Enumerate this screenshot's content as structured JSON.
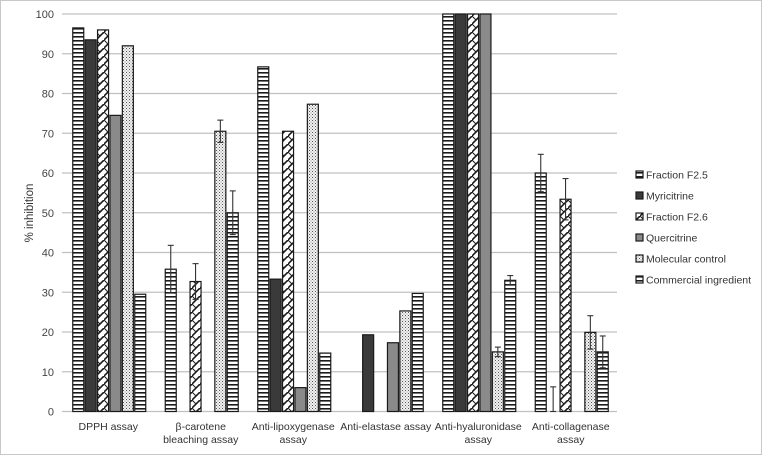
{
  "chart_data": {
    "type": "bar",
    "title": "",
    "xlabel": "",
    "ylabel": "% inhibition",
    "ylim": [
      0,
      100
    ],
    "yticks": [
      0,
      10,
      20,
      30,
      40,
      50,
      60,
      70,
      80,
      90,
      100
    ],
    "grid": true,
    "legend_position": "right",
    "categories": [
      [
        "DPPH assay"
      ],
      [
        "β-carotene",
        "bleaching assay"
      ],
      [
        "Anti-lipoxygenase",
        "assay"
      ],
      [
        "Anti-elastase assay"
      ],
      [
        "Anti-hyaluronidase",
        "assay"
      ],
      [
        "Anti-collagenase",
        "assay"
      ]
    ],
    "series": [
      {
        "name": "Fraction F2.5",
        "pattern": "hlines",
        "values": [
          96.5,
          35.8,
          86.7,
          0,
          100,
          60
        ],
        "errors": [
          0,
          6,
          0,
          0,
          0,
          4.7
        ]
      },
      {
        "name": "Myricitrine",
        "pattern": "dark",
        "values": [
          93.5,
          0,
          33.3,
          19.3,
          100,
          0
        ],
        "errors": [
          0,
          0,
          0,
          0,
          0,
          6.2
        ]
      },
      {
        "name": "Fraction F2.6",
        "pattern": "zigzag",
        "values": [
          96,
          32.7,
          70.5,
          0,
          100,
          53.4
        ],
        "errors": [
          0,
          4.5,
          0,
          0,
          0,
          5.2
        ]
      },
      {
        "name": "Quercitrine",
        "pattern": "gray",
        "values": [
          74.5,
          0,
          6,
          17.3,
          100,
          0
        ],
        "errors": [
          0,
          0,
          0,
          0,
          0,
          0
        ]
      },
      {
        "name": "Molecular control",
        "pattern": "dots",
        "values": [
          92,
          70.5,
          77.3,
          25.3,
          15,
          19.9
        ],
        "errors": [
          0,
          2.8,
          0,
          0,
          1.2,
          4.2
        ]
      },
      {
        "name": "Commercial ingredient",
        "pattern": "hlines",
        "values": [
          29.5,
          50,
          14.7,
          29.7,
          33,
          15
        ],
        "errors": [
          0,
          5.5,
          0,
          0,
          1.2,
          4
        ]
      }
    ]
  },
  "colors": {
    "grid": "#c0c0c0",
    "dark": "#3a3a3a",
    "gray": "#8a8a8a",
    "outline": "#1a1a1a",
    "frame": "#c8c8c8"
  }
}
